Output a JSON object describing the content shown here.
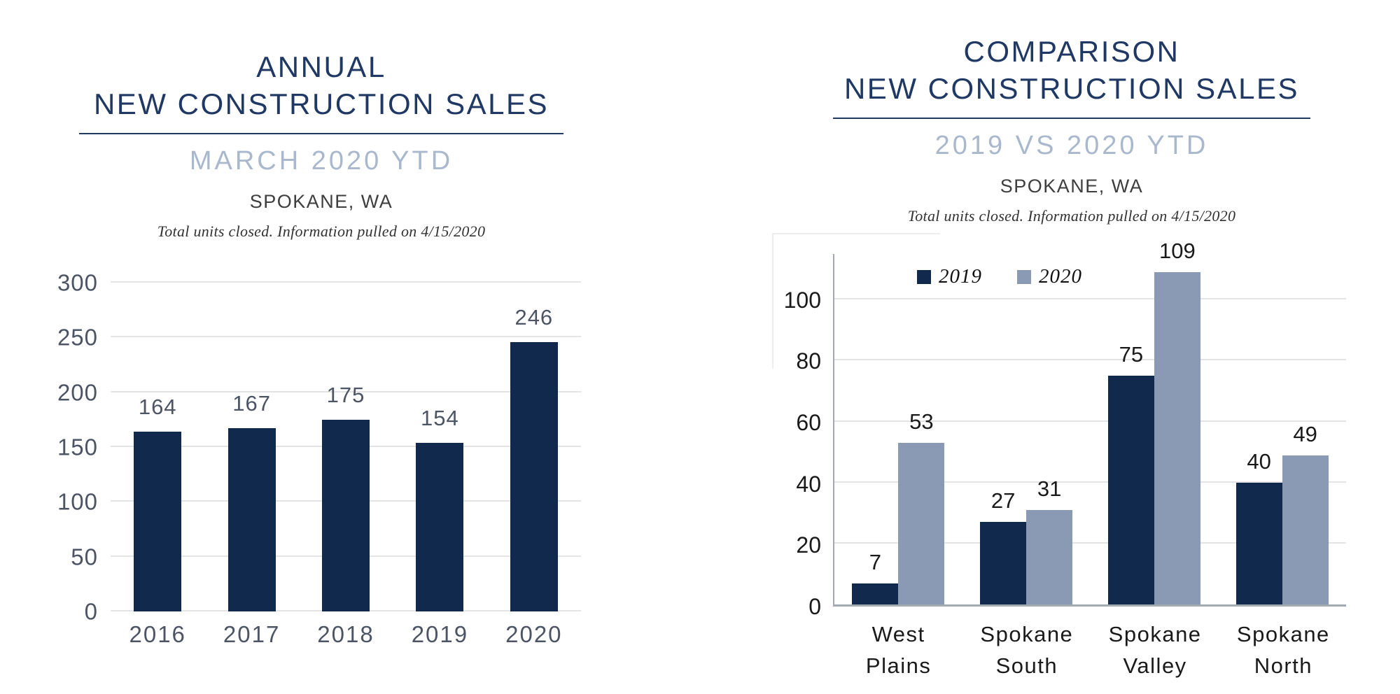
{
  "annual": {
    "title_line1": "ANNUAL",
    "title_line2": "NEW CONSTRUCTION SALES",
    "subtitle": "MARCH 2020 YTD",
    "location": "SPOKANE, WA",
    "note": "Total units closed.  Information pulled on 4/15/2020"
  },
  "comparison": {
    "title_line1": "COMPARISON",
    "title_line2": "NEW CONSTRUCTION SALES",
    "subtitle": "2019 VS 2020 YTD",
    "location": "SPOKANE, WA",
    "note": "Total units closed.  Information pulled on 4/15/2020"
  },
  "colors": {
    "navy_bar": "#12294E",
    "gray_blue_bar": "#8A9AB5",
    "title_navy": "#1F3864",
    "subtitle_light_blue": "#A9B8CD",
    "axis_label_slate": "#4D5565",
    "axis_label_black": "#1A1A1A",
    "gridline": "#E4E4E4",
    "axis_line": "#A3A9B1"
  },
  "chart_data": [
    {
      "type": "bar",
      "title": "ANNUAL NEW CONSTRUCTION SALES",
      "subtitle": "MARCH 2020 YTD",
      "location": "SPOKANE, WA",
      "footnote": "Total units closed.  Information pulled on 4/15/2020",
      "categories": [
        "2016",
        "2017",
        "2018",
        "2019",
        "2020"
      ],
      "values": [
        164,
        167,
        175,
        154,
        246
      ],
      "xlabel": "",
      "ylabel": "",
      "ylim": [
        0,
        300
      ],
      "yticks": [
        0,
        50,
        100,
        150,
        200,
        250,
        300
      ],
      "grid": true,
      "legend": false,
      "bar_color": "#12294E",
      "label_color": "#4D5565"
    },
    {
      "type": "bar",
      "title": "COMPARISON NEW CONSTRUCTION SALES",
      "subtitle": "2019 VS 2020 YTD",
      "location": "SPOKANE, WA",
      "footnote": "Total units closed.  Information pulled on 4/15/2020",
      "categories": [
        "West Plains",
        "Spokane South",
        "Spokane Valley",
        "Spokane North"
      ],
      "series": [
        {
          "name": "2019",
          "color": "#12294E",
          "values": [
            7,
            27,
            75,
            40
          ]
        },
        {
          "name": "2020",
          "color": "#8A9AB5",
          "values": [
            53,
            31,
            109,
            49
          ]
        }
      ],
      "xlabel": "",
      "ylabel": "",
      "ylim": [
        0,
        115
      ],
      "yticks": [
        0,
        20,
        40,
        60,
        80,
        100
      ],
      "grid": true,
      "legend": true,
      "legend_position": "top",
      "label_color": "#1A1A1A"
    }
  ]
}
